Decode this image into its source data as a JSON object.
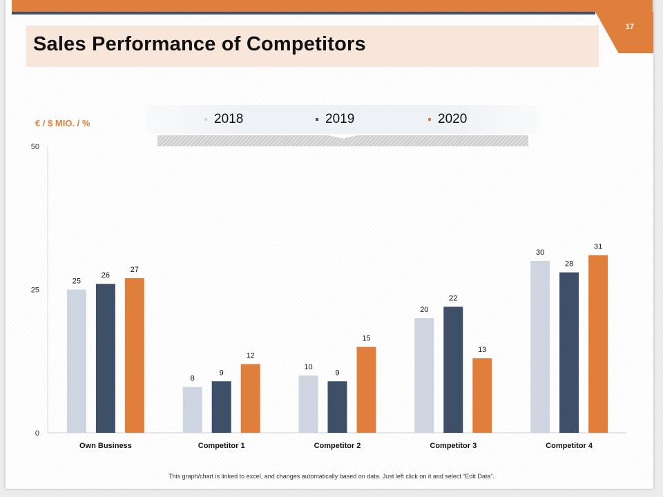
{
  "slide": {
    "title": "Sales Performance of Competitors",
    "page_number": "17",
    "unit_label": "€ / $ MIO. / %",
    "footnote": "This graph/chart is linked to excel, and changes automatically based on data. Just left click on it and select “Edit Data”."
  },
  "colors": {
    "series_2018": "#cdd6e0",
    "series_2019": "#3e5068",
    "series_2020": "#e07f3c",
    "accent": "#e07f3c"
  },
  "legend": [
    {
      "label": "2018",
      "color": "#cdd6e0"
    },
    {
      "label": "2019",
      "color": "#3e5068"
    },
    {
      "label": "2020",
      "color": "#e07f3c"
    }
  ],
  "chart_data": {
    "type": "bar",
    "title": "Sales Performance of Competitors",
    "xlabel": "",
    "ylabel": "€ / $ MIO. / %",
    "ylim": [
      0,
      50
    ],
    "yticks": [
      0,
      25,
      50
    ],
    "grid": false,
    "legend_position": "top",
    "categories": [
      "Own Business",
      "Competitor 1",
      "Competitor 2",
      "Competitor 3",
      "Competitor 4"
    ],
    "series": [
      {
        "name": "2018",
        "values": [
          25,
          8,
          10,
          20,
          30
        ]
      },
      {
        "name": "2019",
        "values": [
          26,
          9,
          9,
          22,
          28
        ]
      },
      {
        "name": "2020",
        "values": [
          27,
          12,
          15,
          13,
          31
        ]
      }
    ]
  }
}
